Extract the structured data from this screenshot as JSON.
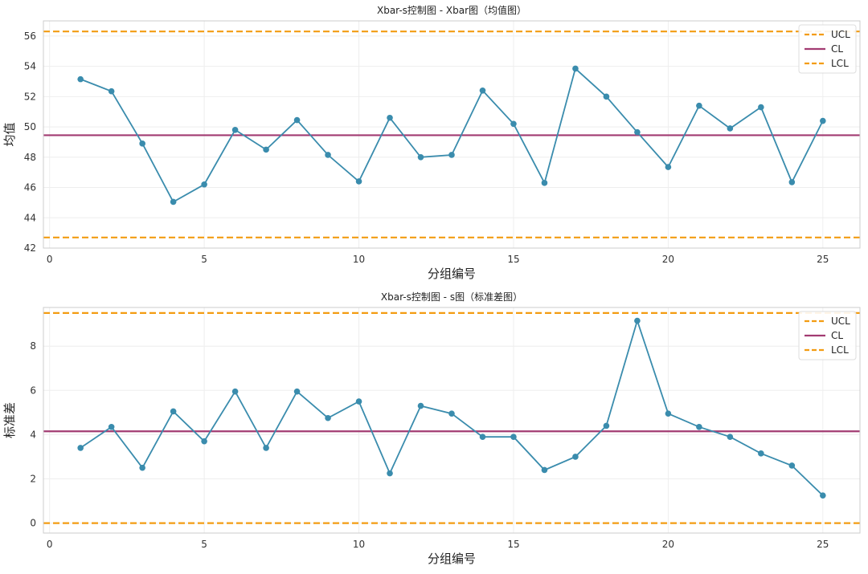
{
  "colors": {
    "series": "#3a8cad",
    "ucl": "#f39c12",
    "cl": "#a23b72",
    "lcl": "#f39c12",
    "grid": "#eeeeee",
    "frame": "#cccccc"
  },
  "chart_data": [
    {
      "type": "line",
      "title": "Xbar-s控制图 - Xbar图（均值图）",
      "xlabel": "分组编号",
      "ylabel": "均值",
      "xlim": [
        -0.2,
        26.2
      ],
      "ylim": [
        42,
        57
      ],
      "xticks": [
        0,
        5,
        10,
        15,
        20,
        25
      ],
      "yticks": [
        42,
        44,
        46,
        48,
        50,
        52,
        54,
        56
      ],
      "grid": true,
      "legend_position": "top-right",
      "legend": [
        "UCL",
        "CL",
        "LCL"
      ],
      "x": [
        1,
        2,
        3,
        4,
        5,
        6,
        7,
        8,
        9,
        10,
        11,
        12,
        13,
        14,
        15,
        16,
        17,
        18,
        19,
        20,
        21,
        22,
        23,
        24,
        25
      ],
      "values": [
        53.15,
        52.35,
        48.9,
        45.05,
        46.2,
        49.8,
        48.5,
        50.45,
        48.15,
        46.4,
        50.6,
        48.0,
        48.15,
        52.4,
        50.2,
        46.3,
        53.85,
        52.0,
        49.65,
        47.35,
        51.4,
        49.9,
        51.3,
        46.35,
        50.4
      ],
      "ucl": 56.3,
      "cl": 49.45,
      "lcl": 42.7
    },
    {
      "type": "line",
      "title": "Xbar-s控制图 - s图（标准差图）",
      "xlabel": "分组编号",
      "ylabel": "标准差",
      "xlim": [
        -0.2,
        26.2
      ],
      "ylim": [
        -0.45,
        9.75
      ],
      "xticks": [
        0,
        5,
        10,
        15,
        20,
        25
      ],
      "yticks": [
        0,
        2,
        4,
        6,
        8
      ],
      "grid": true,
      "legend_position": "top-right",
      "legend": [
        "UCL",
        "CL",
        "LCL"
      ],
      "x": [
        1,
        2,
        3,
        4,
        5,
        6,
        7,
        8,
        9,
        10,
        11,
        12,
        13,
        14,
        15,
        16,
        17,
        18,
        19,
        20,
        21,
        22,
        23,
        24,
        25
      ],
      "values": [
        3.4,
        4.35,
        2.5,
        5.05,
        3.7,
        5.95,
        3.4,
        5.95,
        4.75,
        5.5,
        2.25,
        5.3,
        4.95,
        3.9,
        3.9,
        2.4,
        3.0,
        4.4,
        9.15,
        4.95,
        4.35,
        3.9,
        3.15,
        2.6,
        1.25
      ],
      "ucl": 9.5,
      "cl": 4.15,
      "lcl": 0.0
    }
  ]
}
